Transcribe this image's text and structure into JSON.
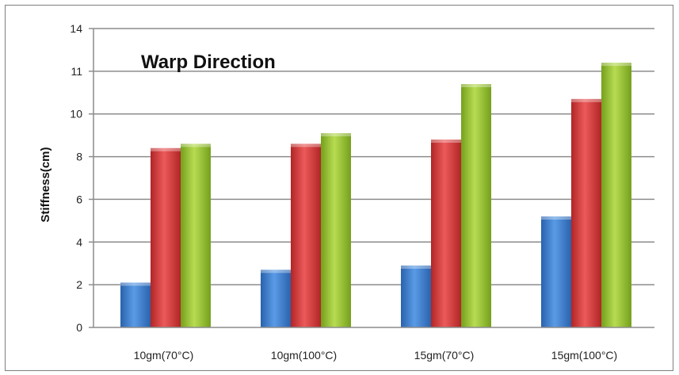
{
  "chart_data": {
    "type": "bar",
    "title": "Warp Direction",
    "xlabel": "",
    "ylabel": "Stiffness(cm)",
    "categories": [
      "10gm(70°C)",
      "10gm(100°C)",
      "15gm(70°C)",
      "15gm(100°C)"
    ],
    "yticks": [
      "0",
      "2",
      "4",
      "6",
      "8",
      "10",
      "11",
      "14"
    ],
    "ylim": [
      0,
      14
    ],
    "grid": true,
    "legend": "none",
    "series": [
      {
        "values": [
          2.1,
          2.7,
          2.9,
          5.2
        ],
        "color": "#3a78c9"
      },
      {
        "values": [
          8.4,
          8.6,
          8.8,
          10.7
        ],
        "color": "#d2383a"
      },
      {
        "values": [
          8.6,
          9.1,
          11.4,
          12.4
        ],
        "color": "#96c031"
      }
    ]
  }
}
